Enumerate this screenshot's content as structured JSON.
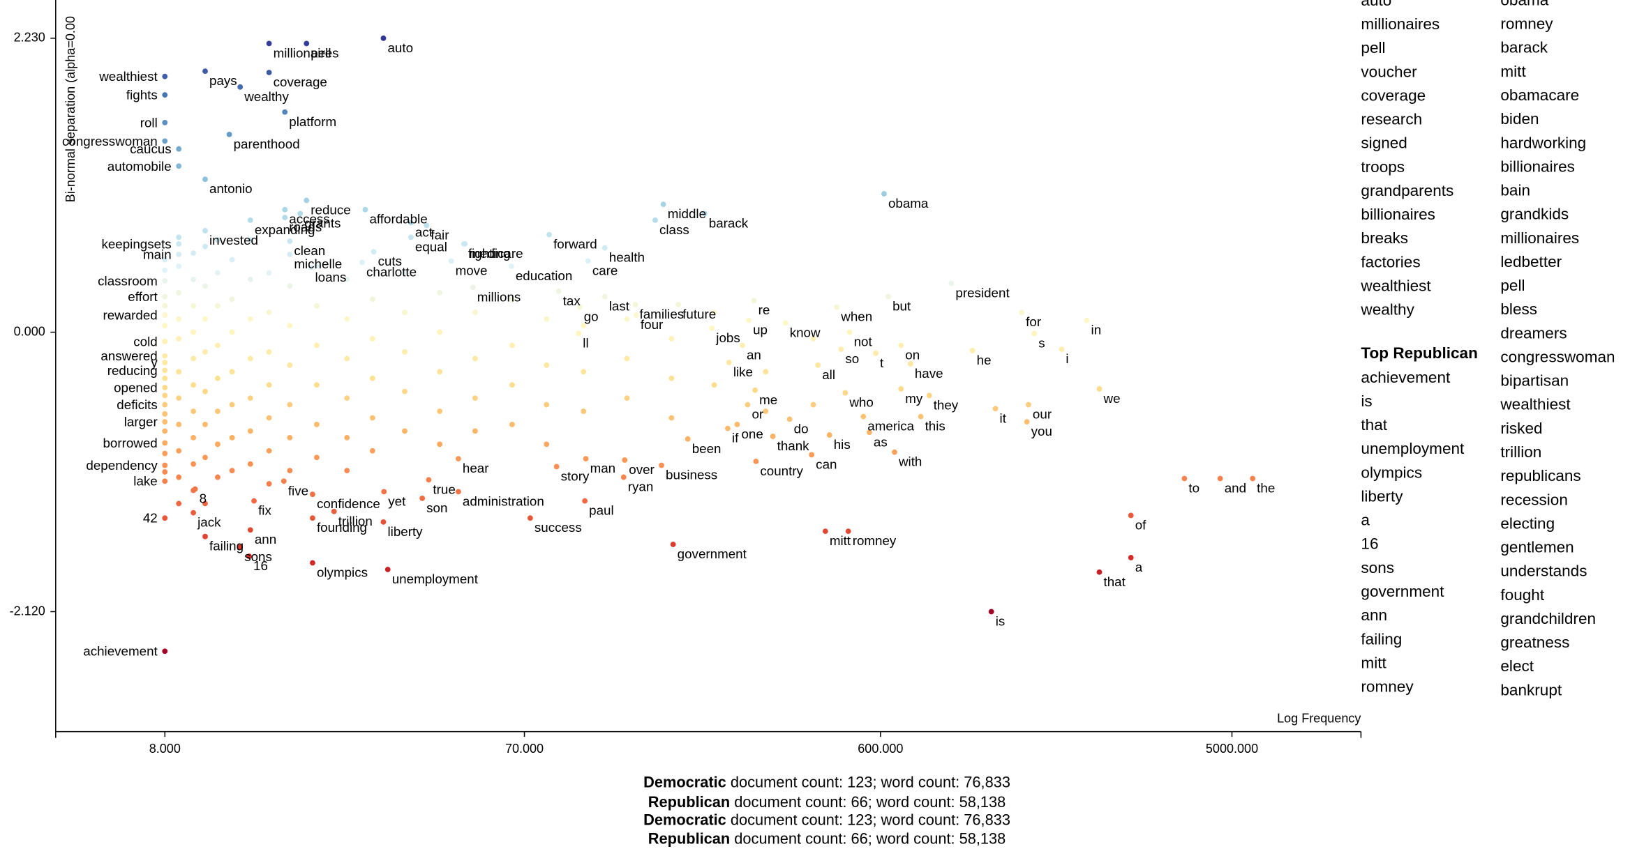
{
  "chart_data": {
    "type": "scatter",
    "ylabel": "Bi-normal separation (alpha=0.00",
    "xlabel": "Log Frequency",
    "log_x": true,
    "xlim": [
      4.14,
      10890
    ],
    "ylim": [
      -3.03,
      2.52
    ],
    "xticks": [
      {
        "value": 8,
        "label": "8.000"
      },
      {
        "value": 70,
        "label": "70.000"
      },
      {
        "value": 600,
        "label": "600.000"
      },
      {
        "value": 5000,
        "label": "5000.000"
      }
    ],
    "yticks": [
      {
        "value": -2.12,
        "label": "-2.120"
      },
      {
        "value": 0,
        "label": "0.000"
      },
      {
        "value": 2.23,
        "label": "2.230"
      }
    ],
    "colors": [
      "#a50026",
      "#d73027",
      "#f46d43",
      "#fdae61",
      "#fee090",
      "#fff7c4",
      "#e0f3f8",
      "#abd9e9",
      "#74add1",
      "#4575b4",
      "#313695"
    ],
    "labels": [
      "auto",
      "millionaires",
      "pell",
      "wealthiest",
      "pays",
      "coverage",
      "wealthy",
      "fights",
      "platform",
      "roll",
      "parenthood",
      "congresswoman",
      "caucus",
      "automobile",
      "antonio",
      "access",
      "expanding",
      "reduce",
      "roads",
      "grants",
      "affordable",
      "act",
      "invested",
      "fair",
      "fighting",
      "forward",
      "middle",
      "class",
      "barack",
      "obama",
      "clean",
      "equal",
      "keepingsets",
      "michelle",
      "medicare",
      "main",
      "cuts",
      "loans",
      "education",
      "health",
      "charlotte",
      "move",
      "care",
      "millions",
      "classroom",
      "president",
      "effort",
      "tax",
      "go",
      "last",
      "families",
      "future",
      "re",
      "when",
      "but",
      "for",
      "rewarded",
      "four",
      "up",
      "know",
      "in",
      "jobs",
      "ll",
      "not",
      "s",
      "cold",
      "an",
      "so",
      "t",
      "on",
      "he",
      "i",
      "answered",
      "y",
      "like",
      "all",
      "have",
      "reducing",
      "me",
      "who",
      "my",
      "they",
      "opened",
      "or",
      "our",
      "we",
      "deficits",
      "do",
      "america",
      "this",
      "it",
      "if",
      "one",
      "you",
      "larger",
      "thank",
      "as",
      "his",
      "been",
      "with",
      "borrowed",
      "hear",
      "story",
      "man",
      "over",
      "business",
      "country",
      "can",
      "dependency",
      "true",
      "five",
      "ryan",
      "lake",
      "8",
      "confidence",
      "yet",
      "son",
      "administration",
      "to",
      "and",
      "the",
      "fix",
      "jack",
      "trillion",
      "paul",
      "42",
      "founding",
      "of",
      "romney",
      "liberty",
      "ann",
      "success",
      "failing",
      "mitt",
      "sons",
      "government",
      "16",
      "olympics",
      "unemployment",
      "a",
      "that",
      "is",
      "achievement",
      null,
      null,
      null,
      null,
      null,
      null,
      null,
      null,
      null,
      null,
      null,
      null,
      null,
      null,
      null,
      null,
      null,
      null,
      null,
      null,
      null,
      null,
      null,
      null,
      null,
      null,
      null,
      null,
      null,
      null,
      null,
      null,
      null,
      null,
      null,
      null,
      null,
      null,
      null,
      null,
      null,
      null,
      null,
      null,
      null,
      null,
      null,
      null,
      null,
      null,
      null,
      null,
      null,
      null,
      null,
      null,
      null,
      null,
      null,
      null,
      null,
      null,
      null,
      null,
      null,
      null,
      null,
      null,
      null,
      null,
      null,
      null,
      null,
      null,
      null,
      null,
      null,
      null,
      null,
      null,
      null,
      null,
      null,
      null,
      null,
      null,
      null,
      null,
      null,
      null,
      null,
      null,
      null,
      null,
      null,
      null,
      null,
      null,
      null,
      null,
      null,
      null,
      null,
      null,
      null,
      null,
      null,
      null,
      null,
      null,
      null,
      null,
      null,
      null,
      null,
      null,
      null,
      null,
      null,
      null,
      null,
      null,
      null,
      null,
      null,
      null,
      null,
      null
    ],
    "x": [
      29.9,
      15.0,
      18.8,
      8.0,
      10.2,
      15.0,
      12.6,
      8.0,
      16.5,
      8.0,
      11.8,
      8.0,
      8.7,
      8.7,
      10.2,
      16.5,
      13.4,
      18.8,
      16.5,
      18.1,
      26.8,
      35.3,
      10.2,
      38.8,
      48.6,
      81.3,
      161.9,
      154.1,
      207.6,
      613,
      17.0,
      35.3,
      8.7,
      17.0,
      48.9,
      8.7,
      28.2,
      19.3,
      64.7,
      113.7,
      26.3,
      45.0,
      102.8,
      51.3,
      8.0,
      920,
      8.0,
      86.1,
      97.7,
      113.7,
      136.7,
      177.2,
      279.7,
      461,
      629,
      1406,
      8.0,
      137.5,
      271,
      338.2,
      2083,
      217.0,
      97.1,
      498,
      1517,
      8.0,
      260.8,
      473,
      583,
      679,
      1045,
      1789,
      8.0,
      8.0,
      240.6,
      411.4,
      719,
      8.0,
      281.5,
      485,
      679,
      805,
      8.0,
      269.2,
      1465,
      2247,
      8.0,
      346.8,
      541,
      765,
      1200,
      238.7,
      252.7,
      1451,
      8.0,
      313.4,
      561,
      441,
      187.6,
      653,
      8.0,
      47.0,
      85.0,
      101.4,
      128.2,
      160.1,
      283,
      396,
      8.0,
      39.3,
      16.4,
      127.4,
      8.0,
      9.6,
      19.5,
      30.0,
      37.8,
      47.0,
      3753,
      4658,
      5665,
      13.7,
      9.5,
      22.2,
      100.8,
      8.0,
      19.5,
      2718,
      494,
      29.9,
      13.4,
      72.5,
      10.2,
      430.2,
      12.6,
      171.7,
      13.3,
      19.5,
      30.7,
      2718,
      2247,
      1171,
      8.0,
      8.0,
      8.0,
      8.0,
      8.0,
      8.0,
      8.0,
      8.0,
      8.0,
      8.0,
      8.0,
      8.7,
      8.7,
      8.7,
      8.7,
      8.7,
      8.7,
      8.7,
      8.7,
      8.7,
      8.7,
      8.7,
      9.5,
      9.5,
      9.5,
      9.5,
      9.5,
      9.5,
      9.5,
      9.5,
      9.5,
      9.5,
      10.2,
      10.2,
      10.2,
      10.2,
      10.2,
      10.2,
      10.2,
      10.2,
      11,
      11,
      11,
      11,
      11,
      11,
      11,
      11,
      12,
      12,
      12,
      12,
      12,
      12,
      12,
      13.4,
      13.4,
      13.4,
      13.4,
      13.4,
      13.4,
      13.4,
      15,
      15,
      15,
      15,
      15,
      15,
      15,
      17,
      17,
      17,
      17,
      17,
      17,
      20,
      20,
      20,
      20,
      20,
      20,
      24,
      24,
      24,
      24,
      24,
      24,
      28,
      28,
      28,
      28,
      28,
      34,
      34,
      34,
      34,
      34,
      42,
      42,
      42,
      42,
      42,
      52,
      52,
      52,
      52,
      65,
      65,
      65,
      65,
      80,
      80,
      80,
      80,
      100,
      100,
      100,
      130,
      130,
      130,
      170,
      170,
      170,
      220,
      220,
      300,
      300,
      400,
      400
    ],
    "values": [
      2.23,
      2.19,
      2.19,
      1.94,
      1.98,
      1.97,
      1.86,
      1.8,
      1.67,
      1.59,
      1.5,
      1.45,
      1.39,
      1.26,
      1.16,
      0.93,
      0.85,
      1.0,
      0.87,
      0.9,
      0.93,
      0.83,
      0.77,
      0.81,
      0.67,
      0.74,
      0.97,
      0.85,
      0.9,
      1.05,
      0.69,
      0.72,
      0.67,
      0.59,
      0.67,
      0.59,
      0.61,
      0.49,
      0.5,
      0.64,
      0.53,
      0.54,
      0.54,
      0.34,
      0.39,
      0.37,
      0.27,
      0.31,
      0.19,
      0.27,
      0.21,
      0.21,
      0.24,
      0.19,
      0.27,
      0.15,
      0.13,
      0.13,
      0.09,
      0.07,
      0.09,
      0.03,
      -0.01,
      0.0,
      -0.01,
      -0.07,
      -0.1,
      -0.13,
      -0.16,
      -0.1,
      -0.14,
      -0.13,
      -0.18,
      -0.23,
      -0.23,
      -0.25,
      -0.24,
      -0.29,
      -0.44,
      -0.46,
      -0.43,
      -0.48,
      -0.42,
      -0.55,
      -0.55,
      -0.43,
      -0.55,
      -0.66,
      -0.64,
      -0.64,
      -0.58,
      -0.73,
      -0.7,
      -0.68,
      -0.68,
      -0.79,
      -0.76,
      -0.78,
      -0.81,
      -0.91,
      -0.84,
      -0.96,
      -1.02,
      -0.96,
      -0.97,
      -1.01,
      -0.98,
      -0.93,
      -1.01,
      -1.12,
      -1.13,
      -1.1,
      -1.13,
      -1.19,
      -1.23,
      -1.21,
      -1.26,
      -1.21,
      -1.11,
      -1.11,
      -1.11,
      -1.28,
      -1.37,
      -1.36,
      -1.28,
      -1.41,
      -1.41,
      -1.39,
      -1.51,
      -1.44,
      -1.5,
      -1.41,
      -1.55,
      -1.51,
      -1.63,
      -1.61,
      -1.7,
      -1.75,
      -1.8,
      -1.71,
      -1.82,
      -2.12,
      -2.42,
      0.55,
      0.47,
      0.2,
      0.05,
      -0.35,
      -0.48,
      -0.62,
      -0.75,
      -0.92,
      -1.06,
      0.72,
      0.5,
      0.3,
      0.1,
      -0.05,
      -0.3,
      -0.5,
      -0.7,
      -0.9,
      -1.1,
      -1.3,
      0.6,
      0.4,
      0.2,
      0,
      -0.2,
      -0.4,
      -0.6,
      -0.8,
      -1.0,
      -1.2,
      0.65,
      0.35,
      0.1,
      -0.15,
      -0.45,
      -0.7,
      -0.95,
      -1.3,
      0.7,
      0.45,
      0.2,
      -0.1,
      -0.35,
      -0.6,
      -0.85,
      -1.1,
      0.55,
      0.25,
      0,
      -0.3,
      -0.55,
      -0.8,
      -1.05,
      0.7,
      0.4,
      0.1,
      -0.2,
      -0.5,
      -0.75,
      -1.0,
      0.45,
      0.15,
      -0.15,
      -0.4,
      -0.65,
      -0.9,
      -1.15,
      0.35,
      0.05,
      -0.25,
      -0.55,
      -0.8,
      -1.05,
      0.5,
      0.2,
      -0.1,
      -0.4,
      -0.7,
      -0.95,
      0.4,
      0.1,
      -0.2,
      -0.5,
      -0.8,
      -1.05,
      0.25,
      -0.05,
      -0.35,
      -0.65,
      -0.9,
      0.45,
      0.15,
      -0.15,
      -0.45,
      -0.75,
      0.3,
      0,
      -0.3,
      -0.6,
      -0.85,
      0.15,
      -0.2,
      -0.5,
      -0.75,
      0.25,
      -0.1,
      -0.4,
      -0.7,
      0.1,
      -0.25,
      -0.55,
      -0.85,
      0.05,
      -0.3,
      -0.6,
      0.1,
      -0.2,
      -0.5,
      -0.05,
      -0.35,
      -0.65,
      0.15,
      -0.4,
      -0.3,
      -0.6,
      -0.05,
      -0.55
    ]
  },
  "top_democratic": [
    "auto",
    "millionaires",
    "pell",
    "voucher",
    "coverage",
    "research",
    "signed",
    "troops",
    "grandparents",
    "billionaires",
    "breaks",
    "factories",
    "wealthiest",
    "wealthy"
  ],
  "top_republican_title": "Top Republican",
  "top_republican": [
    "achievement",
    "is",
    "that",
    "unemployment",
    "olympics",
    "liberty",
    "a",
    "16",
    "sons",
    "government",
    "ann",
    "failing",
    "mitt",
    "romney"
  ],
  "characteristic": [
    "obama",
    "romney",
    "barack",
    "mitt",
    "obamacare",
    "biden",
    "hardworking",
    "billionaires",
    "bain",
    "grandkids",
    "millionaires",
    "ledbetter",
    "pell",
    "bless",
    "dreamers",
    "congresswoman",
    "bipartisan",
    "wealthiest",
    "risked",
    "trillion",
    "republicans",
    "recession",
    "electing",
    "gentlemen",
    "understands",
    "fought",
    "grandchildren",
    "greatness",
    "elect",
    "bankrupt"
  ],
  "footer": [
    {
      "party": "Democratic",
      "text": " document count: 123; word count: 76,833"
    },
    {
      "party": "Republican",
      "text": " document count: 66; word count: 58,138"
    },
    {
      "party": "Democratic",
      "text": " document count: 123; word count: 76,833"
    },
    {
      "party": "Republican",
      "text": " document count: 66; word count: 58,138"
    }
  ]
}
